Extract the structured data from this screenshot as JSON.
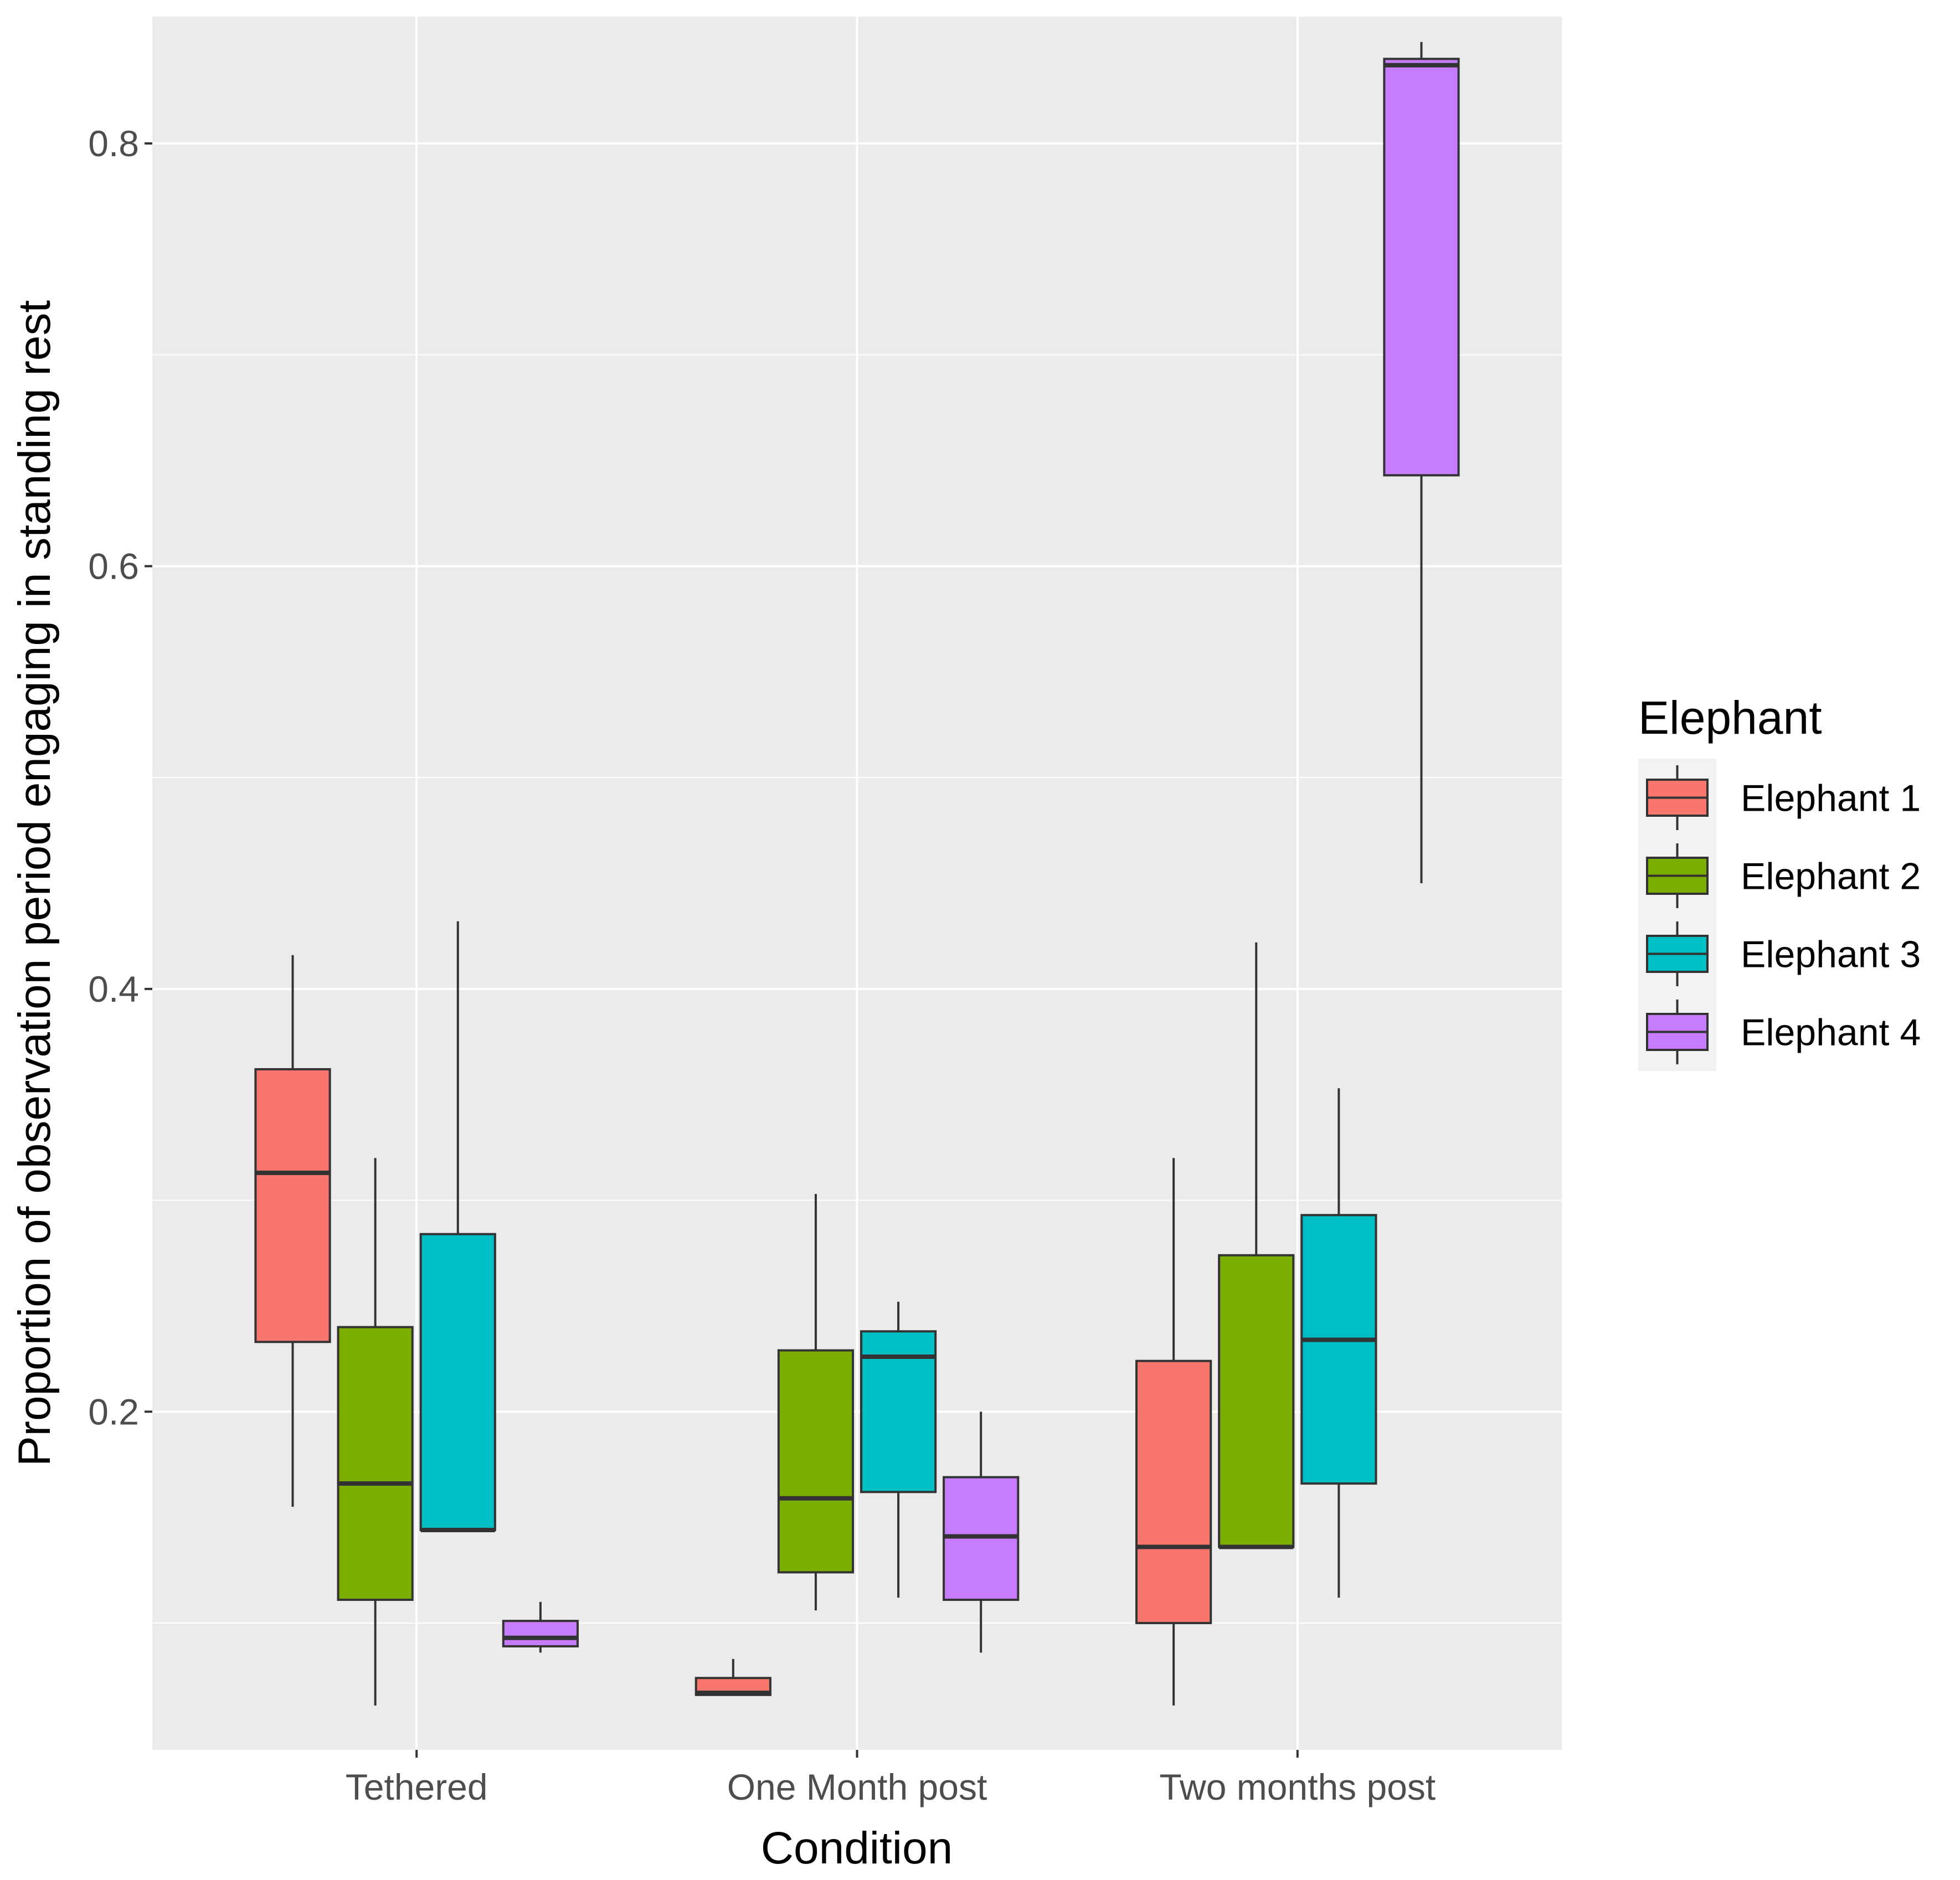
{
  "chart_data": {
    "type": "boxplot",
    "xlabel": "Condition",
    "ylabel": "Proportion of observation period engaging in standing rest",
    "categories": [
      "Tethered",
      "One Month post",
      "Two months post"
    ],
    "ylim": [
      0.04,
      0.86
    ],
    "yticks": [
      0.2,
      0.4,
      0.6,
      0.8
    ],
    "ytick_labels": [
      "0.2",
      "0.4",
      "0.6",
      "0.8"
    ],
    "grid": true,
    "legend_title": "Elephant",
    "legend_position": "right",
    "series": [
      {
        "name": "Elephant 1",
        "color": "#F8766D",
        "boxes": [
          {
            "min": 0.155,
            "q1": 0.233,
            "median": 0.313,
            "q3": 0.362,
            "max": 0.416
          },
          {
            "min": 0.066,
            "q1": 0.066,
            "median": 0.067,
            "q3": 0.074,
            "max": 0.083
          },
          {
            "min": 0.061,
            "q1": 0.1,
            "median": 0.136,
            "q3": 0.224,
            "max": 0.32
          }
        ]
      },
      {
        "name": "Elephant 2",
        "color": "#7CAE00",
        "boxes": [
          {
            "min": 0.061,
            "q1": 0.111,
            "median": 0.166,
            "q3": 0.24,
            "max": 0.32
          },
          {
            "min": 0.106,
            "q1": 0.124,
            "median": 0.159,
            "q3": 0.229,
            "max": 0.303
          },
          {
            "min": 0.136,
            "q1": 0.136,
            "median": 0.136,
            "q3": 0.274,
            "max": 0.422
          }
        ]
      },
      {
        "name": "Elephant 3",
        "color": "#00BFC4",
        "boxes": [
          {
            "min": 0.144,
            "q1": 0.144,
            "median": 0.144,
            "q3": 0.284,
            "max": 0.432
          },
          {
            "min": 0.112,
            "q1": 0.162,
            "median": 0.226,
            "q3": 0.238,
            "max": 0.252
          },
          {
            "min": 0.112,
            "q1": 0.166,
            "median": 0.234,
            "q3": 0.293,
            "max": 0.353
          }
        ]
      },
      {
        "name": "Elephant 4",
        "color": "#C77CFF",
        "boxes": [
          {
            "min": 0.086,
            "q1": 0.089,
            "median": 0.093,
            "q3": 0.101,
            "max": 0.11
          },
          {
            "min": 0.086,
            "q1": 0.111,
            "median": 0.141,
            "q3": 0.169,
            "max": 0.2
          },
          {
            "min": 0.45,
            "q1": 0.643,
            "median": 0.837,
            "q3": 0.84,
            "max": 0.848
          }
        ]
      }
    ]
  }
}
